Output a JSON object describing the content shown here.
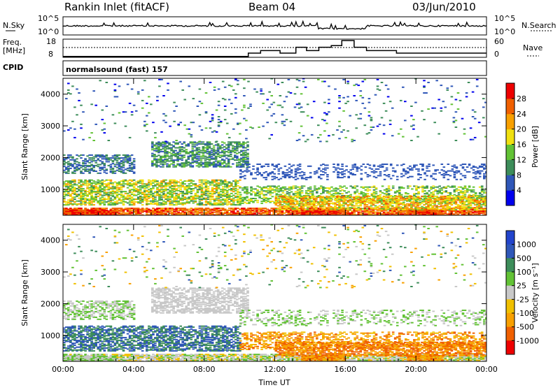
{
  "header": {
    "station": "Rankin Inlet (fitACF)",
    "beam": "Beam 04",
    "date": "03/Jun/2010"
  },
  "top_strip": {
    "left_label": "N.Sky",
    "left_ticks": [
      "10^5",
      "10^0"
    ],
    "right_ticks": [
      "10^5",
      "10^0"
    ],
    "right_label": "N.Search"
  },
  "freq_strip": {
    "left_label_line1": "Freq.",
    "left_label_line2": "[MHz]",
    "left_ticks": [
      "18",
      "8"
    ],
    "right_ticks": [
      "60",
      "0"
    ],
    "right_label": "Nave"
  },
  "cpid": {
    "label": "CPID",
    "text": "normalsound (fast) 157"
  },
  "colors": {
    "power": [
      "#0000ee",
      "#2f57b8",
      "#3d8d5a",
      "#62c235",
      "#f0e010",
      "#f8a000",
      "#f06000",
      "#ee0000"
    ],
    "velocity": [
      "#ee0000",
      "#f06000",
      "#f8a000",
      "#f0c000",
      "#c8c8c8",
      "#62c235",
      "#3d8d5a",
      "#2f57b8",
      "#2244cc"
    ]
  },
  "chart_data": [
    {
      "type": "heatmap",
      "name": "power",
      "ylabel": "Slant Range [km]",
      "yticks": [
        "1000",
        "2000",
        "3000",
        "4000"
      ],
      "xticks": [
        "00:00",
        "04:00",
        "08:00",
        "12:00",
        "16:00",
        "20:00",
        "00:00"
      ],
      "colorbar_label": "Power [dB]",
      "colorbar_ticks": [
        "4",
        "8",
        "12",
        "16",
        "20",
        "24",
        "28"
      ],
      "xlim_hours": [
        0,
        24
      ],
      "ylim_km": [
        180,
        4500
      ]
    },
    {
      "type": "heatmap",
      "name": "velocity",
      "ylabel": "Slant Range [km]",
      "yticks": [
        "1000",
        "2000",
        "3000",
        "4000"
      ],
      "xticks": [
        "00:00",
        "04:00",
        "08:00",
        "12:00",
        "16:00",
        "20:00",
        "00:00"
      ],
      "xlabel": "Time UT",
      "colorbar_label": "Velocity [m s⁻¹]",
      "colorbar_ticks": [
        "1000",
        "500",
        "100",
        "25",
        "-25",
        "-100",
        "-500",
        "-1000"
      ],
      "xlim_hours": [
        0,
        24
      ],
      "ylim_km": [
        180,
        4500
      ]
    },
    {
      "type": "line",
      "name": "frequency_and_nave",
      "frequency_series_mhz": {
        "x_hours": [
          0,
          10.5,
          10.5,
          11.2,
          11.2,
          12.3,
          12.3,
          13.2,
          13.2,
          13.8,
          13.8,
          14.5,
          14.5,
          15.2,
          15.2,
          15.8,
          15.8,
          16.5,
          16.5,
          17.2,
          17.2,
          18.9,
          18.9,
          24
        ],
        "values": [
          8.5,
          8.5,
          10.5,
          10.5,
          12,
          12,
          10.5,
          10.5,
          14,
          14,
          12,
          12,
          14,
          14,
          15,
          15,
          18,
          18,
          14,
          14,
          12,
          12,
          10.5,
          10.5
        ]
      },
      "nave_ylim": [
        0,
        60
      ]
    }
  ]
}
